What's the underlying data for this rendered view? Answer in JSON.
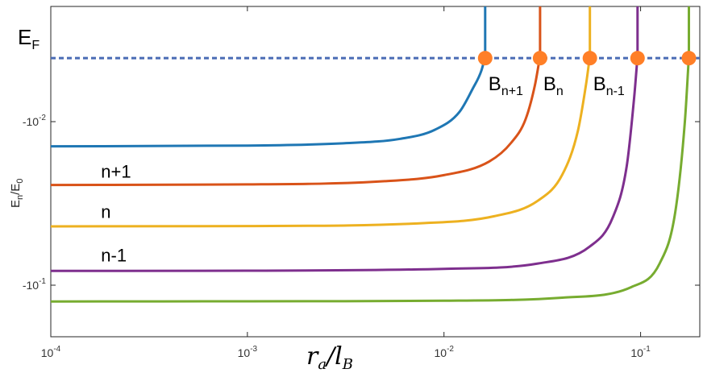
{
  "chart_data": {
    "type": "line",
    "xscale": "log",
    "yscale": "log",
    "xlim": [
      0.0001,
      0.2
    ],
    "x_ticks": [
      {
        "base": "10",
        "exp": "-4"
      },
      {
        "base": "10",
        "exp": "-3"
      },
      {
        "base": "10",
        "exp": "-2"
      },
      {
        "base": "10",
        "exp": "-1"
      }
    ],
    "y_ticks": [
      {
        "base": "-10",
        "exp": "-2",
        "value": -0.01
      },
      {
        "base": "-10",
        "exp": "-1",
        "value": -0.1
      }
    ],
    "ylabel": {
      "main": "E",
      "sub": "n",
      "mid": "/E",
      "sub2": "0"
    },
    "xlabel": {
      "main": "r",
      "sub": "a",
      "mid": "/l",
      "sub2": "B"
    },
    "fermi_level": {
      "label": "E",
      "sub": "F",
      "color": "#4a6bb5"
    },
    "series": [
      {
        "color": "#1f77b4",
        "points": [
          [
            0.0001,
            -0.016
          ],
          [
            0.001,
            -0.0158
          ],
          [
            0.003,
            -0.0152
          ],
          [
            0.006,
            -0.014
          ],
          [
            0.009,
            -0.0118
          ],
          [
            0.012,
            -0.008
          ],
          [
            0.014,
            -0.004
          ],
          [
            0.0155,
            -0.0015
          ],
          [
            0.0162,
            0.0002
          ]
        ]
      },
      {
        "color": "#d95319",
        "points": [
          [
            0.0001,
            -0.029
          ],
          [
            0.001,
            -0.0288
          ],
          [
            0.005,
            -0.0275
          ],
          [
            0.01,
            -0.0252
          ],
          [
            0.017,
            -0.0205
          ],
          [
            0.022,
            -0.015
          ],
          [
            0.026,
            -0.0095
          ],
          [
            0.029,
            -0.0035
          ],
          [
            0.0308,
            0.0002
          ]
        ]
      },
      {
        "color": "#edb120",
        "points": [
          [
            0.0001,
            -0.05
          ],
          [
            0.001,
            -0.0498
          ],
          [
            0.008,
            -0.048
          ],
          [
            0.018,
            -0.044
          ],
          [
            0.03,
            -0.036
          ],
          [
            0.04,
            -0.025
          ],
          [
            0.048,
            -0.012
          ],
          [
            0.053,
            -0.003
          ],
          [
            0.0552,
            0.0002
          ]
        ]
      },
      {
        "color": "#7e2f8e",
        "points": [
          [
            0.0001,
            -0.085
          ],
          [
            0.001,
            -0.0848
          ],
          [
            0.01,
            -0.083
          ],
          [
            0.03,
            -0.078
          ],
          [
            0.055,
            -0.064
          ],
          [
            0.072,
            -0.045
          ],
          [
            0.085,
            -0.022
          ],
          [
            0.093,
            -0.005
          ],
          [
            0.0965,
            0.0002
          ]
        ]
      },
      {
        "color": "#77ac30",
        "points": [
          [
            0.0001,
            -0.12
          ],
          [
            0.001,
            -0.1198
          ],
          [
            0.01,
            -0.119
          ],
          [
            0.04,
            -0.115
          ],
          [
            0.09,
            -0.102
          ],
          [
            0.125,
            -0.078
          ],
          [
            0.15,
            -0.042
          ],
          [
            0.168,
            -0.01
          ],
          [
            0.176,
            0.0002
          ]
        ]
      }
    ],
    "curve_labels": [
      {
        "text": "n+1",
        "x": 0.00018,
        "y": -0.0262
      },
      {
        "text": "n",
        "x": 0.00018,
        "y": -0.045
      },
      {
        "text": "n-1",
        "x": 0.00018,
        "y": -0.076
      }
    ],
    "crossing_markers": {
      "color": "#ff7f27",
      "x": [
        0.0162,
        0.0308,
        0.0552,
        0.0965,
        0.176
      ]
    },
    "marker_labels": [
      {
        "main": "B",
        "sub": "n+1",
        "x": 0.0162
      },
      {
        "main": "B",
        "sub": "n",
        "x": 0.0308
      },
      {
        "main": "B",
        "sub": "n-1",
        "x": 0.0552
      }
    ]
  }
}
